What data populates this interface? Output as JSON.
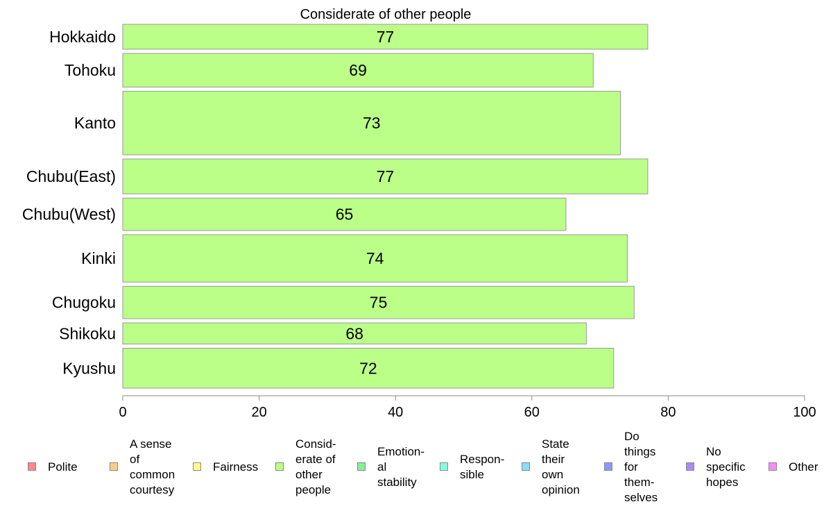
{
  "chart_data": {
    "type": "bar",
    "orientation": "horizontal",
    "title": "Considerate of other people",
    "xlabel": "",
    "ylabel": "",
    "xlim": [
      0,
      100
    ],
    "xticks": [
      "0",
      "20",
      "40",
      "60",
      "80",
      "100"
    ],
    "grid": false,
    "categories": [
      "Hokkaido",
      "Tohoku",
      "Kanto",
      "Chubu(East)",
      "Chubu(West)",
      "Kinki",
      "Chugoku",
      "Shikoku",
      "Kyushu"
    ],
    "values": [
      77,
      69,
      73,
      77,
      65,
      74,
      75,
      68,
      72
    ],
    "value_labels": [
      "77",
      "69",
      "73",
      "77",
      "65",
      "74",
      "75",
      "68",
      "72"
    ],
    "bar_weights": [
      1.0,
      1.35,
      2.55,
      1.4,
      1.3,
      1.9,
      1.3,
      0.85,
      1.6
    ],
    "bar_color": "#bbff88",
    "bar_edge_color": "#999999",
    "legend_position": "bottom",
    "legend": [
      {
        "label": "Polite",
        "color": "#ff8888"
      },
      {
        "label": "A sense\nof\ncommon\ncourtesy",
        "color": "#ffcc88"
      },
      {
        "label": "Fairness",
        "color": "#ffff88"
      },
      {
        "label": "Consid-\nerate of\nother\npeople",
        "color": "#bbff88"
      },
      {
        "label": "Emotion-\nal\nstability",
        "color": "#88ee99"
      },
      {
        "label": "Respon-\nsible",
        "color": "#88ffdd"
      },
      {
        "label": "State\ntheir\nown\nopinion",
        "color": "#88ddff"
      },
      {
        "label": "Do\nthings\nfor\nthem-\nselves",
        "color": "#8899ff"
      },
      {
        "label": "No\nspecific\nhopes",
        "color": "#aa88ff"
      },
      {
        "label": "Other",
        "color": "#ff88ff"
      }
    ]
  }
}
